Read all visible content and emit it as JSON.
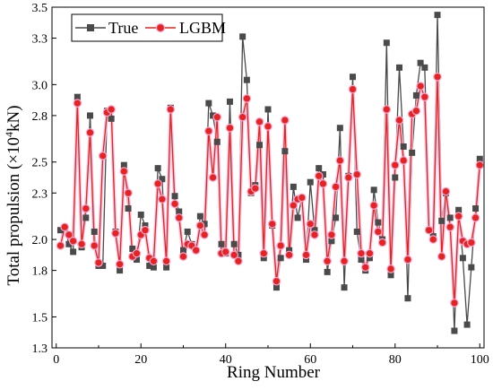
{
  "chart_data": {
    "type": "line",
    "title": "",
    "xlabel": "Ring Number",
    "ylabel_main": "Total propulsion (×10",
    "ylabel_sup": "4",
    "ylabel_tail": "kN)",
    "xlim": [
      -1,
      101
    ],
    "ylim": [
      1.3,
      3.5
    ],
    "xticks": [
      0,
      20,
      40,
      60,
      80,
      100
    ],
    "yticks": [
      1.3,
      1.5,
      1.8,
      2.0,
      2.3,
      2.5,
      2.8,
      3.0,
      3.3,
      3.5
    ],
    "ytick_labels": [
      "1.3",
      "1.5",
      "1.8",
      "2.0",
      "2.3",
      "2.5",
      "2.8",
      "3.0",
      "3.3",
      "3.5"
    ],
    "legend_position": "top-left",
    "x": [
      1,
      2,
      3,
      4,
      5,
      6,
      7,
      8,
      9,
      10,
      11,
      12,
      13,
      14,
      15,
      16,
      17,
      18,
      19,
      20,
      21,
      22,
      23,
      24,
      25,
      26,
      27,
      28,
      29,
      30,
      31,
      32,
      33,
      34,
      35,
      36,
      37,
      38,
      39,
      40,
      41,
      42,
      43,
      44,
      45,
      46,
      47,
      48,
      49,
      50,
      51,
      52,
      53,
      54,
      55,
      56,
      57,
      58,
      59,
      60,
      61,
      62,
      63,
      64,
      65,
      66,
      67,
      68,
      69,
      70,
      71,
      72,
      73,
      74,
      75,
      76,
      77,
      78,
      79,
      80,
      81,
      82,
      83,
      84,
      85,
      86,
      87,
      88,
      89,
      90,
      91,
      92,
      93,
      94,
      95,
      96,
      97,
      98,
      99,
      100
    ],
    "series": [
      {
        "name": "True",
        "color": "#4a4a4a",
        "marker": "square",
        "values": [
          2.06,
          2.08,
          1.97,
          1.92,
          2.92,
          1.95,
          2.14,
          2.8,
          2.05,
          1.83,
          1.83,
          2.83,
          2.78,
          2.05,
          1.8,
          2.48,
          2.2,
          1.94,
          1.87,
          2.16,
          2.09,
          1.83,
          1.82,
          2.46,
          2.39,
          1.82,
          2.85,
          2.28,
          2.18,
          1.93,
          2.05,
          1.97,
          1.93,
          2.15,
          2.1,
          2.88,
          2.8,
          2.63,
          1.97,
          1.91,
          2.89,
          1.97,
          1.9,
          3.31,
          3.03,
          2.3,
          2.35,
          2.61,
          1.88,
          2.84,
          2.09,
          1.69,
          1.88,
          2.57,
          1.93,
          2.34,
          2.14,
          2.27,
          1.87,
          2.37,
          2.06,
          2.46,
          2.42,
          1.79,
          1.99,
          2.14,
          2.72,
          1.69,
          2.41,
          3.05,
          2.05,
          1.87,
          1.8,
          1.88,
          2.32,
          2.11,
          2.0,
          3.27,
          1.77,
          2.4,
          3.11,
          2.6,
          1.62,
          2.56,
          2.93,
          3.14,
          3.11,
          2.06,
          2.02,
          3.45,
          2.12,
          2.3,
          2.14,
          1.41,
          2.19,
          1.88,
          1.45,
          1.82,
          2.2,
          2.52
        ]
      },
      {
        "name": "LGBM",
        "color": "#e8231f",
        "marker": "circle",
        "values": [
          1.96,
          2.08,
          2.03,
          1.99,
          2.88,
          1.97,
          2.2,
          2.69,
          1.96,
          1.85,
          2.54,
          2.82,
          2.84,
          2.04,
          1.84,
          2.44,
          2.3,
          1.89,
          1.91,
          2.03,
          2.06,
          1.88,
          1.86,
          2.36,
          2.26,
          1.86,
          2.84,
          2.23,
          2.14,
          1.89,
          1.97,
          1.96,
          1.93,
          2.09,
          2.03,
          2.7,
          2.4,
          2.79,
          1.91,
          1.92,
          2.72,
          1.9,
          1.86,
          2.79,
          2.91,
          2.31,
          2.33,
          2.76,
          1.91,
          2.73,
          2.1,
          1.73,
          1.96,
          2.77,
          1.9,
          2.22,
          2.26,
          2.27,
          1.9,
          2.1,
          2.03,
          2.41,
          2.36,
          1.86,
          2.03,
          2.34,
          2.51,
          1.86,
          2.4,
          2.97,
          2.42,
          1.91,
          1.82,
          1.91,
          2.22,
          2.05,
          1.98,
          2.84,
          1.81,
          2.48,
          2.77,
          2.51,
          1.87,
          2.81,
          2.83,
          2.99,
          2.92,
          2.06,
          2.0,
          3.05,
          1.89,
          2.31,
          2.08,
          1.59,
          2.15,
          1.99,
          1.97,
          1.98,
          2.14,
          2.48
        ]
      }
    ]
  }
}
